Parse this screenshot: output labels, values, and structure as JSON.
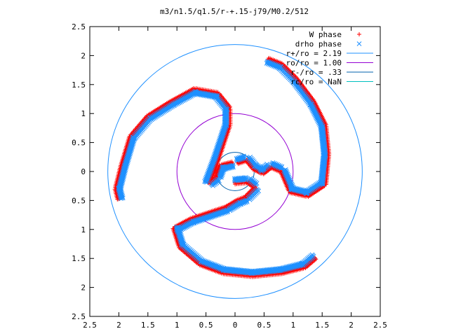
{
  "chart_data": {
    "type": "scatter",
    "title": "m3/n1.5/q1.5/r-+.15-j79/M0.2/512",
    "xlabel": "",
    "ylabel": "",
    "xlim": [
      -2.5,
      2.5
    ],
    "ylim": [
      -2.5,
      2.5
    ],
    "x_ticks": [
      -2.5,
      -2,
      -1.5,
      -1,
      -0.5,
      0,
      0.5,
      1,
      1.5,
      2,
      2.5
    ],
    "y_ticks": [
      2.5,
      2,
      1.5,
      1,
      0.5,
      0,
      -0.5,
      -1,
      -1.5,
      -2,
      -2.5
    ],
    "x_tick_labels": [
      "2.5",
      "2",
      "1.5",
      "1",
      "0.5",
      "0",
      "0.5",
      "1",
      "1.5",
      "2",
      "2.5"
    ],
    "y_tick_labels": [
      "2.5",
      "2",
      "1.5",
      "1",
      "0.5",
      "0",
      "0.5",
      "1",
      "1.5",
      "2",
      "2.5"
    ],
    "grid": false,
    "legend_position": "top-right",
    "series": [
      {
        "name": "W phase",
        "marker": "+",
        "color": "#ff0000",
        "offset": 0.0,
        "arms": [
          [
            [
              -0.05,
              0.15
            ],
            [
              -0.25,
              0.1
            ],
            [
              -0.32,
              -0.1
            ],
            [
              -0.45,
              -0.2
            ],
            [
              -0.3,
              0.2
            ],
            [
              -0.2,
              0.5
            ],
            [
              -0.1,
              0.8
            ],
            [
              -0.1,
              1.1
            ],
            [
              -0.3,
              1.35
            ],
            [
              -0.7,
              1.42
            ],
            [
              -1.1,
              1.2
            ],
            [
              -1.5,
              0.95
            ],
            [
              -1.8,
              0.6
            ],
            [
              -1.95,
              0.1
            ],
            [
              -2.05,
              -0.3
            ],
            [
              -2.0,
              -0.5
            ]
          ],
          [
            [
              0.05,
              0.15
            ],
            [
              0.2,
              0.2
            ],
            [
              0.32,
              0.05
            ],
            [
              0.48,
              -0.03
            ],
            [
              0.62,
              0.08
            ],
            [
              0.8,
              0.0
            ],
            [
              0.95,
              -0.35
            ],
            [
              1.25,
              -0.42
            ],
            [
              1.55,
              -0.22
            ],
            [
              1.6,
              0.3
            ],
            [
              1.55,
              0.8
            ],
            [
              1.35,
              1.2
            ],
            [
              1.05,
              1.6
            ],
            [
              0.8,
              1.85
            ],
            [
              0.55,
              1.95
            ]
          ],
          [
            [
              0.0,
              -0.2
            ],
            [
              0.22,
              -0.18
            ],
            [
              0.35,
              -0.28
            ],
            [
              0.18,
              -0.45
            ],
            [
              0.05,
              -0.5
            ],
            [
              -0.15,
              -0.62
            ],
            [
              -0.45,
              -0.72
            ],
            [
              -0.75,
              -0.82
            ],
            [
              -1.05,
              -0.98
            ],
            [
              -0.95,
              -1.3
            ],
            [
              -0.6,
              -1.6
            ],
            [
              -0.2,
              -1.75
            ],
            [
              0.3,
              -1.8
            ],
            [
              0.8,
              -1.75
            ],
            [
              1.2,
              -1.65
            ],
            [
              1.4,
              -1.48
            ]
          ]
        ]
      },
      {
        "name": "drho phase",
        "marker": "x",
        "color": "#1e90ff",
        "offset": 0.06,
        "arms": [
          [
            [
              -0.05,
              0.15
            ],
            [
              -0.25,
              0.1
            ],
            [
              -0.32,
              -0.1
            ],
            [
              -0.45,
              -0.2
            ],
            [
              -0.3,
              0.2
            ],
            [
              -0.2,
              0.5
            ],
            [
              -0.1,
              0.8
            ],
            [
              -0.1,
              1.1
            ],
            [
              -0.3,
              1.35
            ],
            [
              -0.7,
              1.42
            ],
            [
              -1.1,
              1.2
            ],
            [
              -1.5,
              0.95
            ],
            [
              -1.8,
              0.6
            ],
            [
              -1.95,
              0.1
            ],
            [
              -2.05,
              -0.3
            ],
            [
              -2.0,
              -0.5
            ]
          ],
          [
            [
              0.05,
              0.15
            ],
            [
              0.2,
              0.2
            ],
            [
              0.32,
              0.05
            ],
            [
              0.48,
              -0.03
            ],
            [
              0.62,
              0.08
            ],
            [
              0.8,
              0.0
            ],
            [
              0.95,
              -0.35
            ],
            [
              1.25,
              -0.42
            ],
            [
              1.55,
              -0.22
            ],
            [
              1.6,
              0.3
            ],
            [
              1.55,
              0.8
            ],
            [
              1.35,
              1.2
            ],
            [
              1.05,
              1.6
            ],
            [
              0.8,
              1.85
            ],
            [
              0.55,
              1.95
            ]
          ],
          [
            [
              0.0,
              -0.2
            ],
            [
              0.22,
              -0.18
            ],
            [
              0.35,
              -0.28
            ],
            [
              0.18,
              -0.45
            ],
            [
              0.05,
              -0.5
            ],
            [
              -0.15,
              -0.62
            ],
            [
              -0.45,
              -0.72
            ],
            [
              -0.75,
              -0.82
            ],
            [
              -1.05,
              -0.98
            ],
            [
              -0.95,
              -1.3
            ],
            [
              -0.6,
              -1.6
            ],
            [
              -0.2,
              -1.75
            ],
            [
              0.3,
              -1.8
            ],
            [
              0.8,
              -1.75
            ],
            [
              1.2,
              -1.65
            ],
            [
              1.4,
              -1.48
            ]
          ]
        ]
      }
    ],
    "circles": [
      {
        "name": "r+/ro = 2.19",
        "radius": 2.19,
        "color": "#1e90ff"
      },
      {
        "name": "ro/ro = 1.00",
        "radius": 1.0,
        "color": "#9400d3"
      },
      {
        "name": "r-/ro = .33",
        "radius": 0.33,
        "color": "#0060ad"
      },
      {
        "name": "rc/ro = NaN",
        "radius": null,
        "color": "#00bfbf"
      }
    ]
  }
}
